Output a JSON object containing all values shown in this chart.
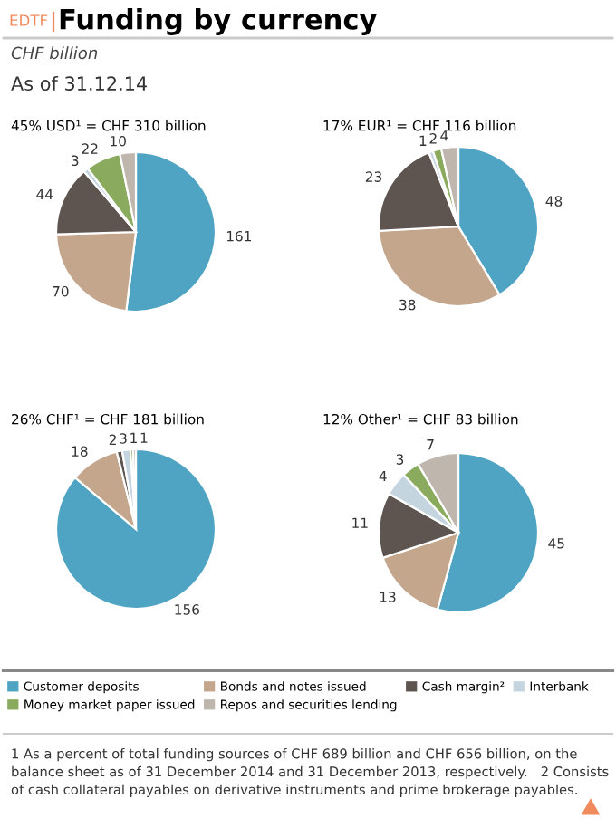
{
  "chart_data": [
    {
      "type": "other",
      "title": "Funding by currency",
      "annotations": [
        "EDTF",
        "CHF billion",
        "As of 31.12.14",
        "1 As a percent of total funding sources of CHF 689 billion and CHF 656 billion, on the balance sheet as of 31 December 2014 and 31 December 2013, respectively.   2 Consists of cash collateral payables on derivative instruments and prime brokerage payables."
      ]
    },
    {
      "type": "pie",
      "title": "45% USD¹ = CHF 310 billion",
      "legend": "bottom",
      "data_labels": true,
      "categories": [
        "Customer deposits",
        "Bonds and notes issued",
        "Cash margin²",
        "Interbank",
        "Money market paper issued",
        "Repos and securities lending"
      ],
      "colors": [
        "#4fa3c3",
        "#c4a68c",
        "#5e5550",
        "#c5d5e0",
        "#8aaa5e",
        "#bfb6ad"
      ],
      "values": [
        161,
        70,
        44,
        3,
        22,
        10
      ]
    },
    {
      "type": "pie",
      "title": "17% EUR¹ = CHF 116 billion",
      "data_labels": true,
      "categories": [
        null,
        null,
        null,
        null,
        null,
        null
      ],
      "colors": [
        "#4fa3c3",
        "#c4a68c",
        "#5e5550",
        "#c5d5e0",
        "#8aaa5e",
        "#bfb6ad"
      ],
      "values": [
        48,
        38,
        23,
        1,
        2,
        4
      ]
    },
    {
      "type": "pie",
      "title": "26% CHF¹ = CHF 181 billion",
      "data_labels": true,
      "categories": [
        null,
        null,
        null,
        null,
        null,
        null
      ],
      "colors": [
        "#4fa3c3",
        "#c4a68c",
        "#5e5550",
        "#c5d5e0",
        "#8aaa5e",
        "#bfb6ad"
      ],
      "values": [
        156,
        18,
        2,
        3,
        1,
        1
      ]
    },
    {
      "type": "pie",
      "title": "12% Other¹ = CHF 83 billion",
      "data_labels": true,
      "categories": [
        null,
        null,
        null,
        null,
        null,
        null
      ],
      "colors": [
        "#4fa3c3",
        "#c4a68c",
        "#5e5550",
        "#c5d5e0",
        "#8aaa5e",
        "#bfb6ad"
      ],
      "values": [
        45,
        13,
        11,
        4,
        3,
        7
      ]
    }
  ]
}
